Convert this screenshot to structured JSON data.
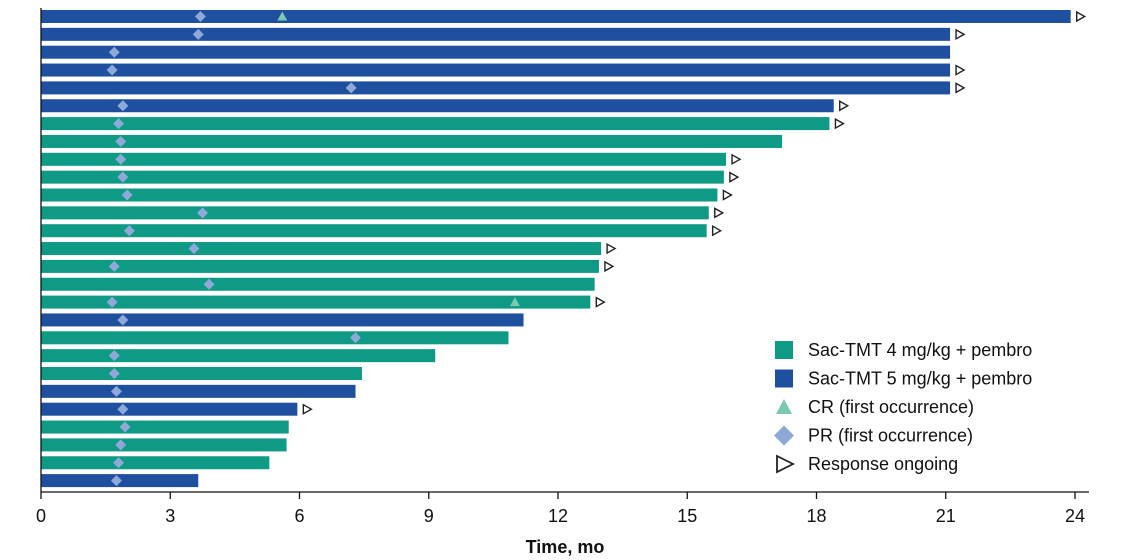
{
  "chart_data": {
    "type": "bar",
    "orientation": "horizontal",
    "title": "",
    "xlabel": "Time, mo",
    "ylabel": "",
    "xlim": [
      0,
      24
    ],
    "xticks": [
      0,
      3,
      6,
      9,
      12,
      15,
      18,
      21,
      24
    ],
    "grid": false,
    "legend_position": "bottom-right",
    "legend": [
      {
        "key": "g4",
        "label": "Sac-TMT 4 mg/kg + pembro",
        "marker": "square"
      },
      {
        "key": "g5",
        "label": "Sac-TMT 5 mg/kg + pembro",
        "marker": "square"
      },
      {
        "key": "cr",
        "label": "CR (first occurrence)",
        "marker": "triangle"
      },
      {
        "key": "pr",
        "label": "PR (first occurrence)",
        "marker": "diamond"
      },
      {
        "key": "ongoing",
        "label": "Response ongoing",
        "marker": "open-triangle"
      }
    ],
    "colors": {
      "g4": "#0E9A84",
      "g5": "#1F50A0",
      "cr": "#7BC9B3",
      "pr": "#8EA8D8",
      "ongoing_stroke": "#222222",
      "axis": "#111111"
    },
    "patients": [
      {
        "group": "g5",
        "duration": 23.9,
        "pr": 3.7,
        "cr": 5.6,
        "ongoing": true
      },
      {
        "group": "g5",
        "duration": 21.1,
        "pr": 3.65,
        "cr": null,
        "ongoing": true
      },
      {
        "group": "g5",
        "duration": 21.1,
        "pr": 1.7,
        "cr": null,
        "ongoing": false
      },
      {
        "group": "g5",
        "duration": 21.1,
        "pr": 1.65,
        "cr": null,
        "ongoing": true
      },
      {
        "group": "g5",
        "duration": 21.1,
        "pr": 7.2,
        "cr": null,
        "ongoing": true
      },
      {
        "group": "g5",
        "duration": 18.4,
        "pr": 1.9,
        "cr": null,
        "ongoing": true
      },
      {
        "group": "g4",
        "duration": 18.3,
        "pr": 1.8,
        "cr": null,
        "ongoing": true
      },
      {
        "group": "g4",
        "duration": 17.2,
        "pr": 1.85,
        "cr": null,
        "ongoing": false
      },
      {
        "group": "g4",
        "duration": 15.9,
        "pr": 1.85,
        "cr": null,
        "ongoing": true
      },
      {
        "group": "g4",
        "duration": 15.85,
        "pr": 1.9,
        "cr": null,
        "ongoing": true
      },
      {
        "group": "g4",
        "duration": 15.7,
        "pr": 2.0,
        "cr": null,
        "ongoing": true
      },
      {
        "group": "g4",
        "duration": 15.5,
        "pr": 3.75,
        "cr": null,
        "ongoing": true
      },
      {
        "group": "g4",
        "duration": 15.45,
        "pr": 2.05,
        "cr": null,
        "ongoing": true
      },
      {
        "group": "g4",
        "duration": 13.0,
        "pr": 3.55,
        "cr": null,
        "ongoing": true
      },
      {
        "group": "g4",
        "duration": 12.95,
        "pr": 1.7,
        "cr": null,
        "ongoing": true
      },
      {
        "group": "g4",
        "duration": 12.85,
        "pr": 3.9,
        "cr": null,
        "ongoing": false
      },
      {
        "group": "g4",
        "duration": 12.75,
        "pr": 1.65,
        "cr": 11.0,
        "ongoing": true
      },
      {
        "group": "g5",
        "duration": 11.2,
        "pr": 1.9,
        "cr": null,
        "ongoing": false
      },
      {
        "group": "g4",
        "duration": 10.85,
        "pr": 7.3,
        "cr": null,
        "ongoing": false
      },
      {
        "group": "g4",
        "duration": 9.15,
        "pr": 1.7,
        "cr": null,
        "ongoing": false
      },
      {
        "group": "g4",
        "duration": 7.45,
        "pr": 1.7,
        "cr": null,
        "ongoing": false
      },
      {
        "group": "g5",
        "duration": 7.3,
        "pr": 1.75,
        "cr": null,
        "ongoing": false
      },
      {
        "group": "g5",
        "duration": 5.95,
        "pr": 1.9,
        "cr": null,
        "ongoing": true
      },
      {
        "group": "g4",
        "duration": 5.75,
        "pr": 1.95,
        "cr": null,
        "ongoing": false
      },
      {
        "group": "g4",
        "duration": 5.7,
        "pr": 1.85,
        "cr": null,
        "ongoing": false
      },
      {
        "group": "g4",
        "duration": 5.3,
        "pr": 1.8,
        "cr": null,
        "ongoing": false
      },
      {
        "group": "g5",
        "duration": 3.65,
        "pr": 1.75,
        "cr": null,
        "ongoing": false
      }
    ]
  }
}
